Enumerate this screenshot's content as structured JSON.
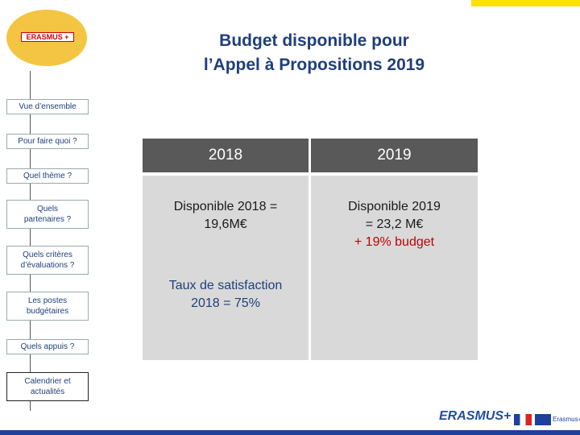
{
  "logo": {
    "text": "ERASMUS +"
  },
  "header": {
    "title_lines": [
      "Budget disponible pour",
      "l’Appel à Propositions 2019"
    ]
  },
  "nav": [
    "Vue d’ensemble",
    "Pour faire quoi ?",
    "Quel thème ?",
    "Quels partenaires ?",
    "Quels critères d’évaluations ?",
    "Les postes budgétaires",
    "Quels appuis ?",
    "Calendrier et actualités"
  ],
  "table": {
    "headers": [
      "2018",
      "2019"
    ],
    "col1": {
      "block1": [
        "Disponible 2018 =",
        "19,6M€"
      ],
      "block2": [
        "Taux de satisfaction",
        "2018 = 75%"
      ]
    },
    "col2": {
      "block1": [
        "Disponible 2019",
        "= 23,2 M€"
      ],
      "note": "+ 19% budget"
    }
  },
  "footer": {
    "logo_text": "ERASMUS+",
    "eu_text": "Erasmus+"
  }
}
